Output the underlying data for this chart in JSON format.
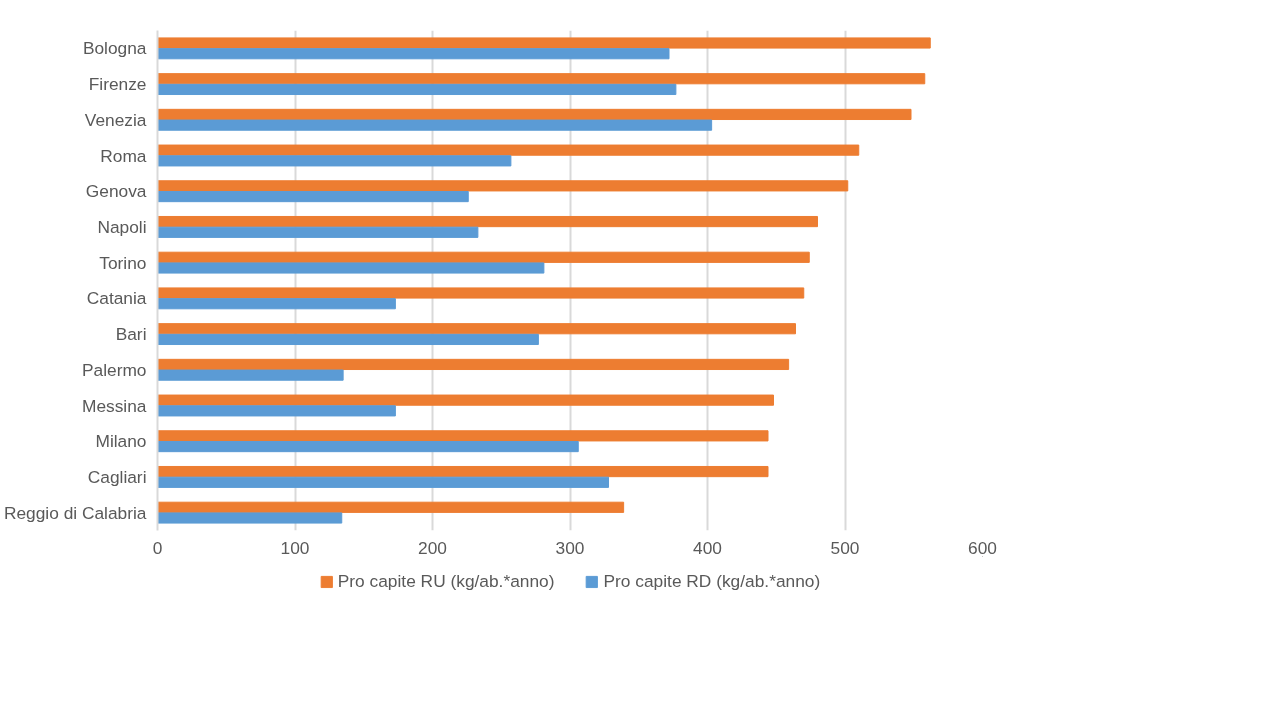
{
  "chart_data": {
    "type": "bar",
    "orientation": "horizontal",
    "categories": [
      "Bologna",
      "Firenze",
      "Venezia",
      "Roma",
      "Genova",
      "Napoli",
      "Torino",
      "Catania",
      "Bari",
      "Palermo",
      "Messina",
      "Milano",
      "Cagliari",
      "Reggio di Calabria"
    ],
    "series": [
      {
        "name": "Pro capite RU (kg/ab.*anno)",
        "color": "#ed7d31",
        "values": [
          562,
          558,
          548,
          510,
          502,
          480,
          474,
          470,
          464,
          459,
          448,
          444,
          444,
          339
        ]
      },
      {
        "name": "Pro capite RD (kg/ab.*anno)",
        "color": "#5b9bd5",
        "values": [
          372,
          377,
          403,
          257,
          226,
          233,
          281,
          173,
          277,
          135,
          173,
          306,
          328,
          134
        ]
      }
    ],
    "xlim": [
      0,
      600
    ],
    "xticks": [
      0,
      100,
      200,
      300,
      400,
      500,
      600
    ],
    "grid": "x",
    "legend": "bottom"
  }
}
